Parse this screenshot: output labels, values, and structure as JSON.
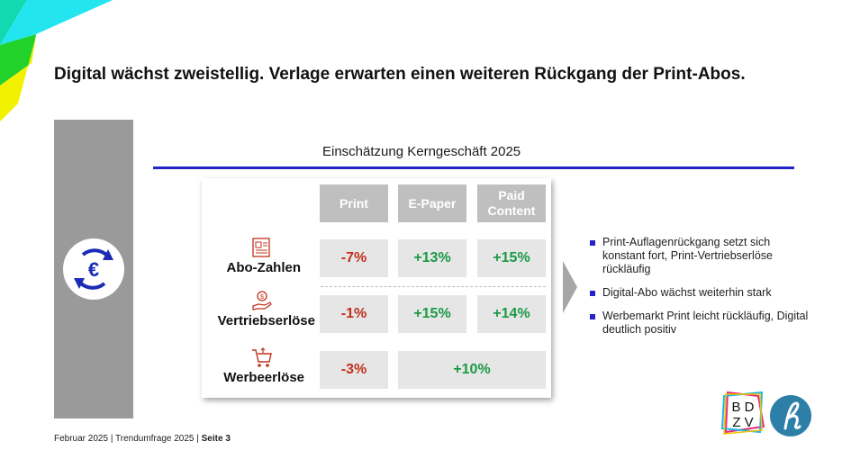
{
  "title": "Digital wächst zweistellig. Verlage erwarten einen weiteren Rückgang der Print-Abos.",
  "section_title": "Einschätzung Kerngeschäft 2025",
  "columns": [
    "Print",
    "E-Paper",
    "Paid Content"
  ],
  "rows": [
    {
      "label": "Abo-Zahlen",
      "icon": "newspaper-icon",
      "values": [
        "-7%",
        "+13%",
        "+15%"
      ]
    },
    {
      "label": "Vertriebserlöse",
      "icon": "hand-money-icon",
      "values": [
        "-1%",
        "+15%",
        "+14%"
      ]
    },
    {
      "label": "Werbeerlöse",
      "icon": "shopping-cart-icon",
      "values": [
        "-3%",
        "+10%"
      ]
    }
  ],
  "bullets": [
    "Print-Auflagenrückgang setzt sich konstant fort, Print-Vertriebserlöse rückläufig",
    "Digital-Abo wächst weiterhin stark",
    "Werbemarkt Print leicht rückläufig, Digital deutlich positiv"
  ],
  "footer": {
    "prefix": "Februar 2025 | Trendumfrage 2025 | ",
    "page": "Seite 3"
  },
  "logo_text": "BDZV",
  "colors": {
    "accent_blue": "#2323c8",
    "negative": "#c0301e",
    "positive": "#1a9a45",
    "icon_red": "#c0301e"
  },
  "icons": {
    "main": "euro-cycle-icon",
    "logo2": "h-logo-icon"
  }
}
